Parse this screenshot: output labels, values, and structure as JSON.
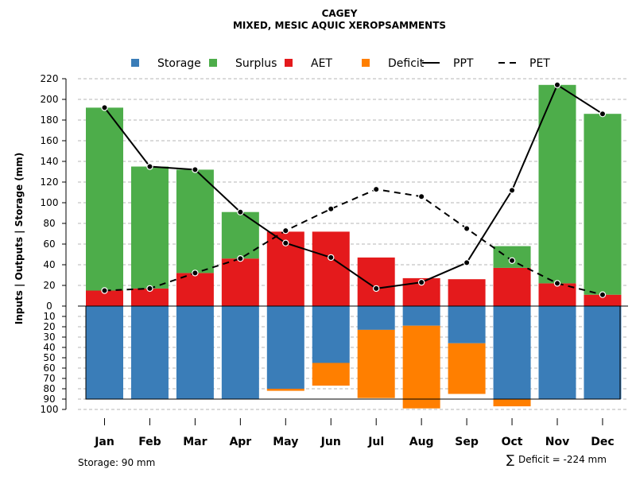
{
  "chart_data": {
    "type": "bar",
    "title": "CAGEY",
    "subtitle": "MIXED, MESIC AQUIC XEROPSAMMENTS",
    "ylabel": "Inputs | Outputs | Storage    (mm)",
    "legend": {
      "placement": "top",
      "items": [
        {
          "label": "Storage",
          "kind": "box",
          "color": "#3A7DB8"
        },
        {
          "label": "Surplus",
          "kind": "box",
          "color": "#4DAD4A"
        },
        {
          "label": "AET",
          "kind": "box",
          "color": "#E41A1C"
        },
        {
          "label": "Deficit",
          "kind": "box",
          "color": "#FF7F00"
        },
        {
          "label": "PPT",
          "kind": "line-solid",
          "color": "#000000"
        },
        {
          "label": "PET",
          "kind": "line-dashed",
          "color": "#000000"
        }
      ]
    },
    "categories": [
      "Jan",
      "Feb",
      "Mar",
      "Apr",
      "May",
      "Jun",
      "Jul",
      "Aug",
      "Sep",
      "Oct",
      "Nov",
      "Dec"
    ],
    "upper_axis": {
      "ylim": [
        0,
        220
      ],
      "ticks": [
        "0",
        "20",
        "40",
        "60",
        "80",
        "100",
        "120",
        "140",
        "160",
        "180",
        "200",
        "220"
      ]
    },
    "lower_axis": {
      "ylim": [
        0,
        100
      ],
      "ticks": [
        "0",
        "10",
        "20",
        "30",
        "40",
        "50",
        "60",
        "70",
        "80",
        "90",
        "100"
      ]
    },
    "series": [
      {
        "name": "AET",
        "values": [
          15,
          17,
          32,
          46,
          72,
          72,
          47,
          27,
          26,
          37,
          22,
          11
        ]
      },
      {
        "name": "Surplus",
        "values": [
          177,
          118,
          100,
          45,
          0,
          0,
          0,
          0,
          0,
          21,
          192,
          175
        ]
      },
      {
        "name": "PPT",
        "values": [
          192,
          135,
          132,
          91,
          61,
          47,
          17,
          23,
          42,
          112,
          214,
          186
        ]
      },
      {
        "name": "PET",
        "values": [
          15,
          17,
          32,
          46,
          73,
          94,
          113,
          106,
          75,
          44,
          22,
          11
        ]
      },
      {
        "name": "Storage",
        "values": [
          90,
          90,
          90,
          90,
          80,
          55,
          23,
          19,
          36,
          90,
          90,
          90
        ]
      },
      {
        "name": "Deficit",
        "ranges": [
          [
            0,
            0
          ],
          [
            0,
            0
          ],
          [
            0,
            0
          ],
          [
            0,
            0
          ],
          [
            80,
            82
          ],
          [
            55,
            77
          ],
          [
            23,
            89
          ],
          [
            19,
            99
          ],
          [
            36,
            85
          ],
          [
            90,
            97
          ],
          [
            0,
            0
          ],
          [
            0,
            0
          ]
        ]
      }
    ],
    "colors": {
      "storage": "#3A7DB8",
      "surplus": "#4DAD4A",
      "aet": "#E41A1C",
      "deficit": "#FF7F00",
      "line": "#000000",
      "grid": "#b4b4b4"
    },
    "footer": {
      "storage_text": "Storage: 90 mm",
      "deficit_symbol": "∑",
      "deficit_text": "Deficit = -224 mm"
    }
  }
}
